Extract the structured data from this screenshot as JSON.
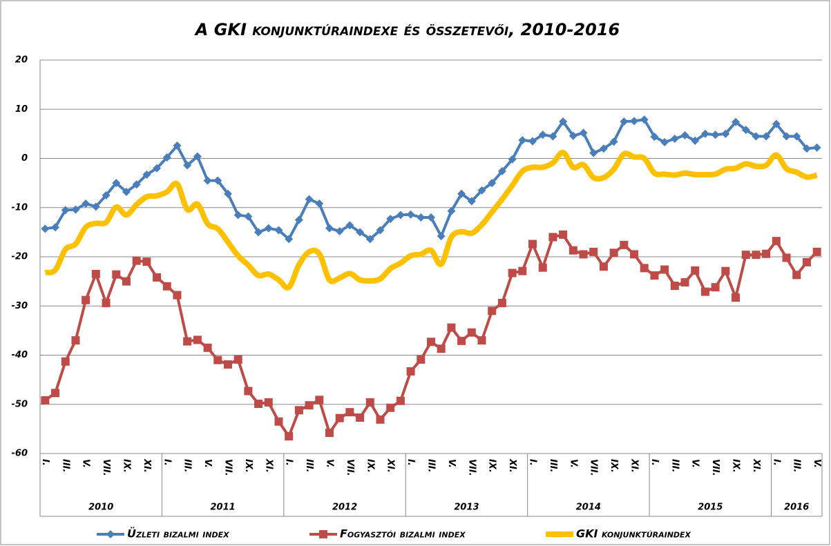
{
  "chart_data": {
    "type": "line",
    "title": "A GKI konjunktúraindexe és összetevői, 2010-2016",
    "categories": [
      "I.",
      null,
      "III.",
      null,
      "V.",
      null,
      "VII.",
      null,
      "IX.",
      null,
      "XI.",
      null,
      "I.",
      null,
      "III.",
      null,
      "V.",
      null,
      "VII.",
      null,
      "IX.",
      null,
      "XI.",
      null,
      "I.",
      null,
      "III.",
      null,
      "V.",
      null,
      "VII.",
      null,
      "IX.",
      null,
      "XI.",
      null,
      "I.",
      null,
      "III.",
      null,
      "V.",
      null,
      "VII.",
      null,
      "IX.",
      null,
      "XI.",
      null,
      "I.",
      null,
      "III.",
      null,
      "V.",
      null,
      "VII.",
      null,
      "IX.",
      null,
      "XI.",
      null,
      "I.",
      null,
      "III.",
      null,
      "V.",
      null,
      "VII.",
      null,
      "IX.",
      null,
      "XI.",
      null,
      "I.",
      null,
      "III.",
      null,
      "V."
    ],
    "years": [
      "2010",
      "2011",
      "2012",
      "2013",
      "2014",
      "2015",
      "2016"
    ],
    "series": [
      {
        "name": "Üzleti bizalmi index",
        "color": "#4a7ebb",
        "marker": "diamond",
        "smooth": false,
        "values": [
          -14.3,
          -14,
          -10.5,
          -10.4,
          -9.2,
          -9.8,
          -7.5,
          -5,
          -6.8,
          -5.3,
          -3.3,
          -2,
          0.2,
          2.6,
          -1.4,
          0.4,
          -4.5,
          -4.5,
          -7.2,
          -11.5,
          -11.8,
          -15,
          -14.2,
          -14.6,
          -16.4,
          -12.5,
          -8.3,
          -9.2,
          -14.2,
          -14.8,
          -13.6,
          -15,
          -16.4,
          -14.6,
          -12.3,
          -11.5,
          -11.4,
          -12,
          -12,
          -15.8,
          -10.7,
          -7.2,
          -8.7,
          -6.5,
          -5,
          -2.6,
          -0.2,
          3.7,
          3.5,
          4.8,
          4.5,
          7.5,
          4.6,
          5.2,
          1.1,
          2,
          3.4,
          7.5,
          7.6,
          7.9,
          4.4,
          3.3,
          4,
          4.7,
          3.6,
          5,
          4.8,
          5,
          7.4,
          5.8,
          4.5,
          4.5,
          7,
          4.5,
          4.5,
          2,
          2.2
        ]
      },
      {
        "name": "Fogyasztói bizalmi index",
        "color": "#be4b48",
        "marker": "square",
        "smooth": false,
        "values": [
          -49.2,
          -47.7,
          -41.3,
          -37,
          -28.8,
          -23.5,
          -29.4,
          -23.6,
          -25,
          -20.8,
          -21,
          -24.2,
          -26,
          -27.8,
          -37.2,
          -36.9,
          -38.5,
          -41,
          -41.9,
          -40.9,
          -47.3,
          -49.9,
          -49.6,
          -53.5,
          -56.5,
          -51.2,
          -50.2,
          -49.1,
          -55.8,
          -52.8,
          -51.6,
          -52.7,
          -49.6,
          -53.1,
          -50.7,
          -49.3,
          -43.3,
          -40.9,
          -37.3,
          -38.7,
          -34.4,
          -37.1,
          -35.4,
          -37,
          -31,
          -29.4,
          -23.3,
          -22.9,
          -17.4,
          -22.2,
          -16,
          -15.5,
          -18.7,
          -19.5,
          -19,
          -22,
          -19.2,
          -17.6,
          -19.5,
          -22.3,
          -23.8,
          -22.6,
          -25.9,
          -25.2,
          -22.8,
          -27.1,
          -26.2,
          -22.9,
          -28.3,
          -19.6,
          -19.6,
          -19.4,
          -16.8,
          -20.2,
          -23.7,
          -21.1,
          -19
        ]
      },
      {
        "name": "GKI konjunktúraindex",
        "color": "#ffc000",
        "marker": "none",
        "smooth": true,
        "values": [
          -23.2,
          -22.7,
          -18.5,
          -17.4,
          -14,
          -13.2,
          -13,
          -9.9,
          -11.5,
          -9.4,
          -7.8,
          -7.6,
          -6.8,
          -5.2,
          -10.4,
          -9.3,
          -13.3,
          -14.3,
          -17,
          -19.8,
          -21.7,
          -23.8,
          -23.5,
          -24.7,
          -26.2,
          -21.6,
          -19,
          -19.4,
          -24.7,
          -24.3,
          -23.4,
          -24.7,
          -24.9,
          -24.5,
          -22.4,
          -21.3,
          -19.8,
          -19.5,
          -18.7,
          -21.5,
          -16,
          -14.9,
          -15.2,
          -13.5,
          -10.9,
          -8.3,
          -5.5,
          -2.6,
          -1.8,
          -1.8,
          -0.9,
          1.2,
          -1.8,
          -1.3,
          -3.9,
          -3.9,
          -2.2,
          0.9,
          0.3,
          0,
          -3,
          -3.2,
          -3.4,
          -3,
          -3.3,
          -3.3,
          -3.2,
          -2.2,
          -2,
          -1.1,
          -1.6,
          -1.4,
          0.7,
          -2.1,
          -2.8,
          -3.8,
          -3.4
        ]
      }
    ],
    "ylim": [
      -60,
      20
    ],
    "yticks": [
      -60,
      -50,
      -40,
      -30,
      -20,
      -10,
      0,
      10,
      20
    ],
    "grid": true,
    "legend": "bottom"
  }
}
